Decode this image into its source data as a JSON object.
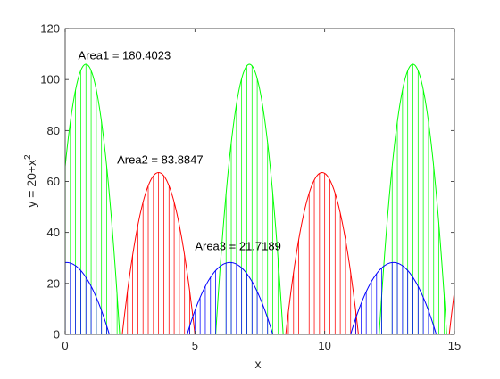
{
  "chart_data": {
    "type": "area",
    "xlabel": "x",
    "ylabel": "y = 20+x",
    "ylabel_superscript": "2",
    "xlim": [
      0,
      15
    ],
    "ylim": [
      0,
      120
    ],
    "xticks": [
      0,
      5,
      10,
      15
    ],
    "yticks": [
      0,
      20,
      40,
      60,
      80,
      100,
      120
    ],
    "grid": false,
    "colors": {
      "green": "#00ff00",
      "red": "#ff0000",
      "blue": "#0000ff",
      "axes": "#262626"
    },
    "series": [
      {
        "color": "#00ff00",
        "humps": [
          {
            "x_start": -0.5,
            "x_end": 2.1,
            "peak_x": 0.8,
            "peak_y": 106
          },
          {
            "x_start": 5.8,
            "x_end": 8.4,
            "peak_x": 7.1,
            "peak_y": 106
          },
          {
            "x_start": 12.1,
            "x_end": 14.7,
            "peak_x": 13.4,
            "peak_y": 106
          }
        ]
      },
      {
        "color": "#ff0000",
        "humps": [
          {
            "x_start": 2.2,
            "x_end": 5.0,
            "peak_x": 3.6,
            "peak_y": 63.5
          },
          {
            "x_start": 8.5,
            "x_end": 11.3,
            "peak_x": 9.9,
            "peak_y": 63.5
          },
          {
            "x_start": 14.8,
            "x_end": 17.6,
            "peak_x": 16.2,
            "peak_y": 63.5
          }
        ]
      },
      {
        "color": "#0000ff",
        "humps": [
          {
            "x_start": -1.6,
            "x_end": 1.7,
            "peak_x": 0.05,
            "peak_y": 28.2
          },
          {
            "x_start": 4.7,
            "x_end": 8.0,
            "peak_x": 6.35,
            "peak_y": 28.2
          },
          {
            "x_start": 11.0,
            "x_end": 14.3,
            "peak_x": 12.65,
            "peak_y": 28.2
          }
        ]
      }
    ],
    "annotations": [
      {
        "text": "Area1 = 180.4023",
        "x": 0.5,
        "y": 108
      },
      {
        "text": "Area2 = 83.8847",
        "x": 2.0,
        "y": 67
      },
      {
        "text": "Area3 = 21.7189",
        "x": 5.0,
        "y": 33
      }
    ]
  }
}
